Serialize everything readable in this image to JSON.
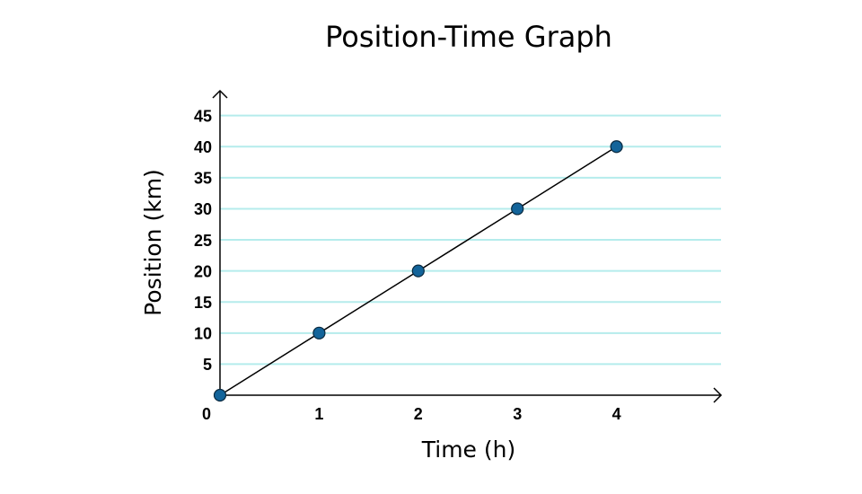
{
  "chart_data": {
    "type": "line",
    "title": "Position-Time Graph",
    "x_label": "Time (h)",
    "y_label": "Position (km)",
    "x": [
      0,
      1,
      2,
      3,
      4
    ],
    "values": [
      0,
      10,
      20,
      30,
      40
    ],
    "color": "#000000",
    "marker_color": "#13649a",
    "xlim": [
      0,
      5
    ],
    "xticks": [
      0,
      1,
      2,
      3,
      4
    ],
    "ylim": [
      0,
      49
    ],
    "yticks": [
      5,
      10,
      15,
      20,
      25,
      30,
      35,
      40,
      45
    ],
    "grid": true,
    "grid_color": "#b5ecec"
  }
}
